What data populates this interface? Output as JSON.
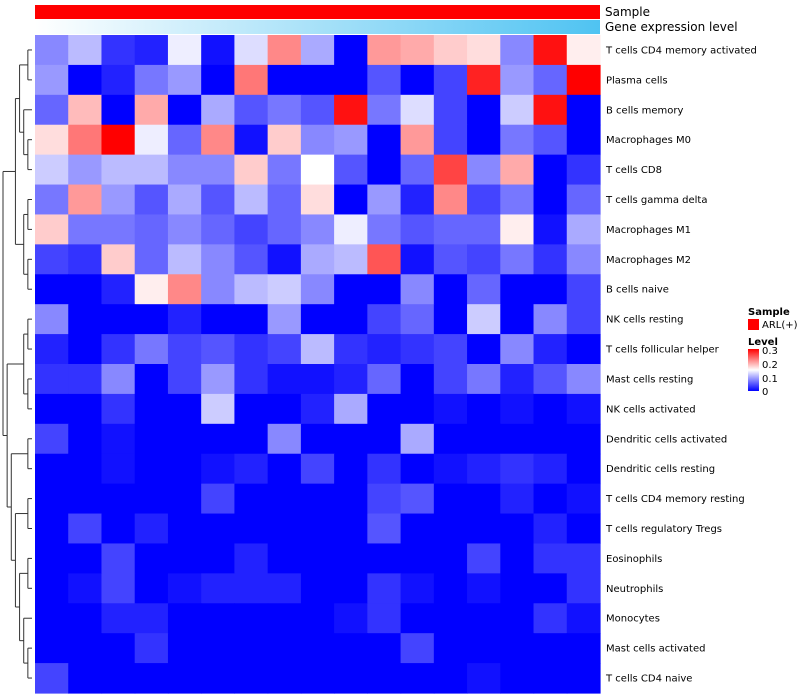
{
  "chart_data": {
    "type": "heatmap",
    "title": "",
    "annotations": [
      {
        "name": "Sample",
        "label": "Sample"
      },
      {
        "name": "Gene expression level",
        "label": "Gene expression level"
      }
    ],
    "colors": {
      "sample_bar": "#ff0000",
      "expr_low": "#ffffff",
      "expr_high": "#4fc3f2",
      "low": "#0000ff",
      "mid": "#ffffff",
      "high": "#ff0000",
      "dendrogram": "#333333"
    },
    "legend": {
      "sample_title": "Sample",
      "sample_entry": "ARL(+)",
      "level_title": "Level",
      "level_ticks": [
        "0.3",
        "0.2",
        "0.1",
        "0"
      ],
      "level_range": [
        0,
        0.3
      ]
    },
    "rows": [
      "T cells CD4 memory activated",
      "Plasma cells",
      "B cells memory",
      "Macrophages M0",
      "T cells CD8",
      "T cells gamma delta",
      "Macrophages M1",
      "Macrophages M2",
      "B cells naive",
      "NK cells resting",
      "T cells follicular helper",
      "Mast cells resting",
      "NK cells activated",
      "Dendritic cells activated",
      "Dendritic cells resting",
      "T cells CD4 memory resting",
      "T cells regulatory  Tregs",
      "Eosinophils",
      "Neutrophils",
      "Monocytes",
      "Mast cells activated",
      "T cells CD4 naive"
    ],
    "values": [
      [
        0.08,
        0.11,
        0.03,
        0.02,
        0.14,
        0.01,
        0.13,
        0.22,
        0.1,
        0.0,
        0.21,
        0.2,
        0.18,
        0.17,
        0.08,
        0.29,
        0.16
      ],
      [
        0.09,
        0.0,
        0.02,
        0.07,
        0.09,
        0.0,
        0.23,
        0.0,
        0.0,
        0.0,
        0.05,
        0.0,
        0.04,
        0.28,
        0.09,
        0.06,
        0.3
      ],
      [
        0.06,
        0.19,
        0.0,
        0.2,
        0.0,
        0.1,
        0.05,
        0.07,
        0.05,
        0.29,
        0.07,
        0.13,
        0.04,
        0.0,
        0.12,
        0.29,
        0.0
      ],
      [
        0.17,
        0.23,
        0.3,
        0.14,
        0.06,
        0.22,
        0.01,
        0.18,
        0.08,
        0.09,
        0.0,
        0.21,
        0.04,
        0.0,
        0.07,
        0.05,
        0.0
      ],
      [
        0.12,
        0.09,
        0.11,
        0.11,
        0.08,
        0.08,
        0.18,
        0.07,
        0.15,
        0.05,
        0.0,
        0.06,
        0.26,
        0.08,
        0.2,
        0.0,
        0.03
      ],
      [
        0.07,
        0.21,
        0.09,
        0.05,
        0.1,
        0.05,
        0.11,
        0.06,
        0.17,
        0.0,
        0.09,
        0.02,
        0.22,
        0.04,
        0.07,
        0.0,
        0.06
      ],
      [
        0.18,
        0.07,
        0.07,
        0.06,
        0.08,
        0.06,
        0.04,
        0.06,
        0.08,
        0.14,
        0.07,
        0.05,
        0.06,
        0.06,
        0.16,
        0.01,
        0.1
      ],
      [
        0.04,
        0.03,
        0.18,
        0.06,
        0.11,
        0.08,
        0.05,
        0.01,
        0.1,
        0.11,
        0.25,
        0.01,
        0.05,
        0.04,
        0.07,
        0.03,
        0.08
      ],
      [
        0.0,
        0.0,
        0.02,
        0.16,
        0.22,
        0.08,
        0.11,
        0.12,
        0.08,
        0.0,
        0.0,
        0.08,
        0.0,
        0.06,
        0.0,
        0.0,
        0.04
      ],
      [
        0.08,
        0.0,
        0.0,
        0.0,
        0.02,
        0.0,
        0.0,
        0.09,
        0.0,
        0.0,
        0.04,
        0.06,
        0.0,
        0.12,
        0.0,
        0.08,
        0.04
      ],
      [
        0.02,
        0.0,
        0.03,
        0.07,
        0.04,
        0.05,
        0.03,
        0.04,
        0.11,
        0.03,
        0.02,
        0.03,
        0.04,
        0.0,
        0.08,
        0.02,
        0.0
      ],
      [
        0.03,
        0.03,
        0.08,
        0.0,
        0.04,
        0.09,
        0.03,
        0.01,
        0.01,
        0.02,
        0.06,
        0.0,
        0.04,
        0.07,
        0.02,
        0.05,
        0.08
      ],
      [
        0.0,
        0.0,
        0.03,
        0.0,
        0.0,
        0.12,
        0.0,
        0.0,
        0.02,
        0.1,
        0.0,
        0.0,
        0.01,
        0.0,
        0.01,
        0.0,
        0.01
      ],
      [
        0.04,
        0.0,
        0.01,
        0.0,
        0.0,
        0.0,
        0.0,
        0.08,
        0.0,
        0.0,
        0.0,
        0.1,
        0.0,
        0.0,
        0.0,
        0.0,
        0.0
      ],
      [
        0.0,
        0.0,
        0.01,
        0.0,
        0.0,
        0.01,
        0.02,
        0.0,
        0.04,
        0.0,
        0.03,
        0.0,
        0.01,
        0.02,
        0.03,
        0.02,
        0.0
      ],
      [
        0.0,
        0.0,
        0.0,
        0.0,
        0.0,
        0.04,
        0.0,
        0.0,
        0.0,
        0.0,
        0.04,
        0.05,
        0.0,
        0.0,
        0.02,
        0.0,
        0.01
      ],
      [
        0.0,
        0.04,
        0.0,
        0.02,
        0.0,
        0.0,
        0.0,
        0.0,
        0.0,
        0.0,
        0.05,
        0.0,
        0.0,
        0.0,
        0.0,
        0.02,
        0.0
      ],
      [
        0.0,
        0.0,
        0.04,
        0.0,
        0.0,
        0.0,
        0.02,
        0.0,
        0.0,
        0.0,
        0.0,
        0.0,
        0.0,
        0.04,
        0.0,
        0.03,
        0.03
      ],
      [
        0.0,
        0.01,
        0.04,
        0.0,
        0.01,
        0.02,
        0.02,
        0.02,
        0.0,
        0.0,
        0.03,
        0.01,
        0.0,
        0.01,
        0.0,
        0.0,
        0.03
      ],
      [
        0.0,
        0.0,
        0.02,
        0.02,
        0.0,
        0.0,
        0.0,
        0.0,
        0.0,
        0.01,
        0.03,
        0.0,
        0.0,
        0.0,
        0.0,
        0.03,
        0.01
      ],
      [
        0.0,
        0.0,
        0.0,
        0.03,
        0.0,
        0.0,
        0.0,
        0.0,
        0.0,
        0.0,
        0.0,
        0.04,
        0.0,
        0.0,
        0.0,
        0.0,
        0.0
      ],
      [
        0.04,
        0.0,
        0.0,
        0.0,
        0.0,
        0.0,
        0.0,
        0.0,
        0.0,
        0.0,
        0.0,
        0.0,
        0.0,
        0.01,
        0.0,
        0.0,
        0.0
      ]
    ]
  }
}
